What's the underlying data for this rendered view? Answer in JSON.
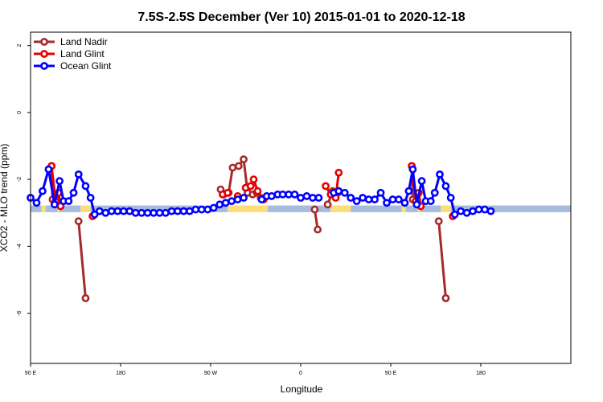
{
  "chart_data": {
    "type": "line",
    "title": "7.5S-2.5S December (Ver 10)   2015-01-01 to 2020-12-18",
    "xlabel": "Longitude",
    "ylabel": "XCO2 - MLO trend (ppm)",
    "xlim": [
      0,
      540
    ],
    "ylim": [
      -7.5,
      2.4
    ],
    "x_ticks": [
      {
        "x": 0,
        "label": "90 E"
      },
      {
        "x": 90,
        "label": "180"
      },
      {
        "x": 180,
        "label": "90 W"
      },
      {
        "x": 270,
        "label": "0"
      },
      {
        "x": 360,
        "label": "90 E"
      },
      {
        "x": 450,
        "label": "180"
      }
    ],
    "y_ticks": [
      {
        "y": 2,
        "label": "2"
      },
      {
        "y": 0,
        "label": "0"
      },
      {
        "y": -2,
        "label": "-2"
      },
      {
        "y": -4,
        "label": "-4"
      },
      {
        "y": -6,
        "label": "-6"
      }
    ],
    "legend_position": "top-left",
    "surface_band": {
      "y_top": -2.78,
      "y_bottom": -2.98,
      "segments": [
        {
          "type": "ocean",
          "x0": 0,
          "x1": 11
        },
        {
          "type": "land",
          "x0": 11,
          "x1": 15
        },
        {
          "type": "ocean",
          "x0": 15,
          "x1": 27
        },
        {
          "type": "land",
          "x0": 27,
          "x1": 29
        },
        {
          "type": "ocean",
          "x0": 29,
          "x1": 50
        },
        {
          "type": "land",
          "x0": 50,
          "x1": 60
        },
        {
          "type": "ocean",
          "x0": 60,
          "x1": 197
        },
        {
          "type": "land",
          "x0": 197,
          "x1": 237
        },
        {
          "type": "ocean",
          "x0": 237,
          "x1": 300
        },
        {
          "type": "land",
          "x0": 300,
          "x1": 320
        },
        {
          "type": "ocean",
          "x0": 320,
          "x1": 371
        },
        {
          "type": "land",
          "x0": 371,
          "x1": 375
        },
        {
          "type": "ocean",
          "x0": 375,
          "x1": 387
        },
        {
          "type": "land",
          "x0": 387,
          "x1": 389
        },
        {
          "type": "ocean",
          "x0": 389,
          "x1": 410
        },
        {
          "type": "land",
          "x0": 410,
          "x1": 420
        },
        {
          "type": "ocean",
          "x0": 420,
          "x1": 540
        }
      ]
    },
    "series": [
      {
        "name": "Land Nadir",
        "color": "#a52a2a",
        "segments": [
          [
            [
              21,
              -1.6
            ],
            [
              22,
              -2.6
            ],
            [
              30,
              -2.8
            ]
          ],
          [
            [
              48,
              -3.25
            ],
            [
              55,
              -5.55
            ]
          ],
          [
            [
              190,
              -2.3
            ],
            [
              193,
              -2.45
            ],
            [
              198,
              -2.4
            ],
            [
              202,
              -1.65
            ],
            [
              208,
              -1.6
            ],
            [
              213,
              -1.4
            ],
            [
              217,
              -2.4
            ],
            [
              222,
              -2.45
            ],
            [
              226,
              -2.4
            ],
            [
              230,
              -2.55
            ]
          ],
          [
            [
              284,
              -2.9
            ],
            [
              287,
              -3.5
            ]
          ],
          [
            [
              297,
              -2.75
            ],
            [
              302,
              -2.35
            ],
            [
              307,
              -2.4
            ]
          ],
          [
            [
              381,
              -1.6
            ],
            [
              382,
              -2.6
            ],
            [
              390,
              -2.8
            ]
          ],
          [
            [
              408,
              -3.25
            ],
            [
              415,
              -5.55
            ]
          ]
        ]
      },
      {
        "name": "Land Glint",
        "color": "#e60000",
        "segments": [
          [
            [
              21,
              -1.6
            ],
            [
              25,
              -2.65
            ],
            [
              28,
              -2.4
            ],
            [
              30,
              -2.8
            ]
          ],
          [
            [
              62,
              -3.1
            ]
          ],
          [
            [
              192,
              -2.45
            ],
            [
              197,
              -2.4
            ]
          ],
          [
            [
              207,
              -2.5
            ]
          ],
          [
            [
              215,
              -2.25
            ],
            [
              220,
              -2.2
            ],
            [
              223,
              -2.0
            ],
            [
              227,
              -2.35
            ],
            [
              233,
              -2.6
            ]
          ],
          [
            [
              295,
              -2.2
            ],
            [
              300,
              -2.45
            ],
            [
              305,
              -2.55
            ],
            [
              308,
              -1.8
            ]
          ],
          [
            [
              381,
              -1.6
            ],
            [
              385,
              -2.65
            ],
            [
              388,
              -2.4
            ],
            [
              390,
              -2.8
            ]
          ],
          [
            [
              422,
              -3.1
            ]
          ]
        ]
      },
      {
        "name": "Ocean Glint",
        "color": "#0000ff",
        "segments": [
          [
            [
              0,
              -2.55
            ],
            [
              6,
              -2.7
            ],
            [
              12,
              -2.35
            ],
            [
              18,
              -1.7
            ],
            [
              24,
              -2.75
            ],
            [
              29,
              -2.05
            ],
            [
              33,
              -2.65
            ],
            [
              38,
              -2.65
            ],
            [
              43,
              -2.4
            ],
            [
              48,
              -1.85
            ],
            [
              55,
              -2.2
            ],
            [
              60,
              -2.55
            ],
            [
              64,
              -3.05
            ],
            [
              69,
              -2.95
            ],
            [
              75,
              -3.0
            ],
            [
              81,
              -2.95
            ],
            [
              87,
              -2.95
            ],
            [
              93,
              -2.95
            ],
            [
              99,
              -2.95
            ],
            [
              105,
              -3.0
            ],
            [
              111,
              -3.0
            ],
            [
              117,
              -3.0
            ],
            [
              123,
              -3.0
            ],
            [
              129,
              -3.0
            ],
            [
              135,
              -3.0
            ],
            [
              141,
              -2.95
            ],
            [
              147,
              -2.95
            ],
            [
              153,
              -2.95
            ],
            [
              159,
              -2.95
            ],
            [
              165,
              -2.9
            ],
            [
              171,
              -2.9
            ],
            [
              177,
              -2.9
            ],
            [
              183,
              -2.85
            ],
            [
              189,
              -2.75
            ],
            [
              195,
              -2.7
            ],
            [
              201,
              -2.65
            ],
            [
              207,
              -2.6
            ],
            [
              213,
              -2.55
            ]
          ],
          [
            [
              231,
              -2.6
            ],
            [
              236,
              -2.5
            ],
            [
              241,
              -2.5
            ],
            [
              247,
              -2.45
            ],
            [
              252,
              -2.45
            ],
            [
              258,
              -2.45
            ],
            [
              264,
              -2.45
            ],
            [
              270,
              -2.55
            ],
            [
              276,
              -2.5
            ],
            [
              282,
              -2.55
            ],
            [
              288,
              -2.55
            ]
          ],
          [
            [
              303,
              -2.4
            ],
            [
              308,
              -2.35
            ],
            [
              314,
              -2.4
            ],
            [
              320,
              -2.55
            ],
            [
              326,
              -2.65
            ],
            [
              332,
              -2.55
            ],
            [
              338,
              -2.6
            ],
            [
              344,
              -2.6
            ],
            [
              350,
              -2.4
            ],
            [
              356,
              -2.7
            ],
            [
              362,
              -2.6
            ],
            [
              368,
              -2.6
            ],
            [
              374,
              -2.7
            ],
            [
              378,
              -2.35
            ],
            [
              382,
              -1.7
            ],
            [
              386,
              -2.75
            ],
            [
              391,
              -2.05
            ],
            [
              395,
              -2.65
            ],
            [
              400,
              -2.65
            ],
            [
              404,
              -2.4
            ],
            [
              409,
              -1.85
            ],
            [
              415,
              -2.2
            ],
            [
              420,
              -2.55
            ],
            [
              424,
              -3.05
            ],
            [
              430,
              -2.95
            ],
            [
              436,
              -3.0
            ],
            [
              442,
              -2.95
            ],
            [
              448,
              -2.9
            ],
            [
              454,
              -2.9
            ],
            [
              460,
              -2.95
            ]
          ]
        ]
      }
    ]
  }
}
